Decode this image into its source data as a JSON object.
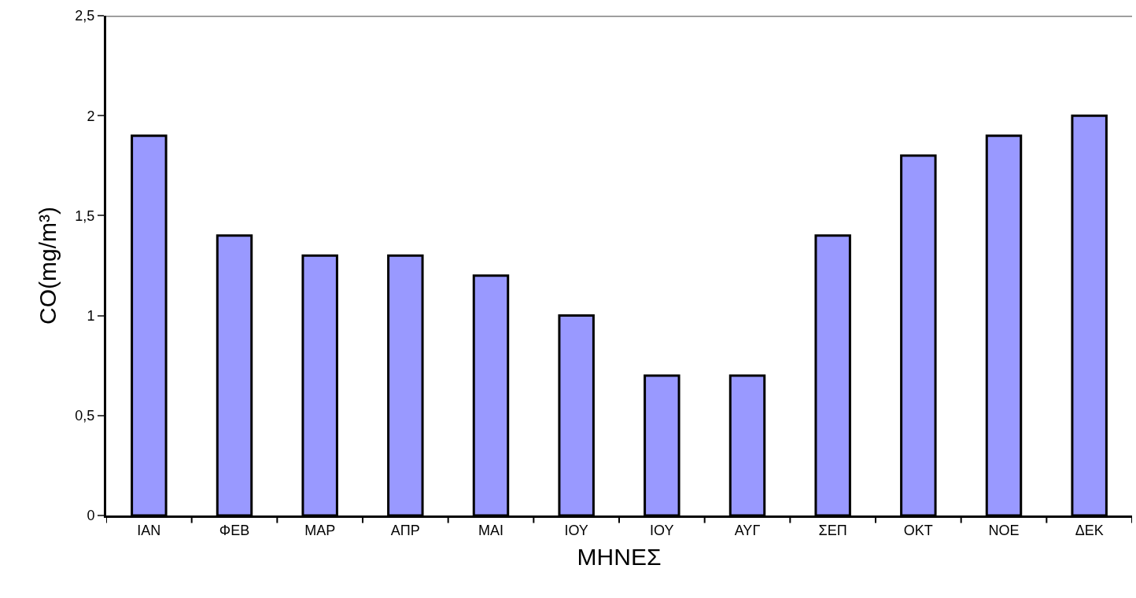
{
  "chart_data": {
    "type": "bar",
    "xlabel": "ΜΗΝΕΣ",
    "ylabel": "CO(mg/m³)",
    "categories": [
      "ΙΑΝ",
      "ΦΕΒ",
      "ΜΑΡ",
      "ΑΠΡ",
      "ΜΑΙ",
      "ΙΟΥ",
      "ΙΟΥ",
      "ΑΥΓ",
      "ΣΕΠ",
      "ΟΚΤ",
      "ΝΟΕ",
      "ΔΕΚ"
    ],
    "values": [
      1.9,
      1.4,
      1.3,
      1.3,
      1.2,
      1.0,
      0.7,
      0.7,
      1.4,
      1.8,
      1.9,
      2.0
    ],
    "color": "#9999ff",
    "ylim": [
      0,
      2.5
    ],
    "yticks": [
      0,
      {
        "value": 0.5,
        "label": "0,5"
      },
      1,
      {
        "value": 1.5,
        "label": "1,5"
      },
      2,
      {
        "value": 2.5,
        "label": "2,5"
      }
    ],
    "grid": false
  }
}
